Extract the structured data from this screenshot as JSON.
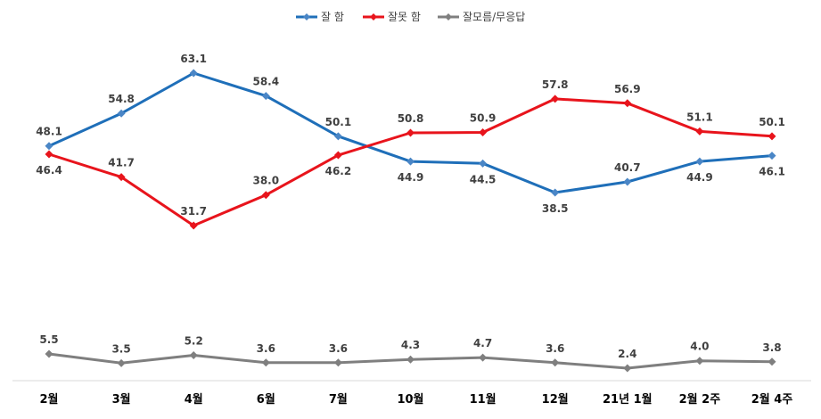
{
  "chart_data": {
    "type": "line",
    "title": "",
    "xlabel": "",
    "ylabel": "",
    "categories": [
      "2월",
      "3월",
      "4월",
      "6월",
      "7월",
      "10월",
      "11월",
      "12월",
      "21년 1월",
      "2월 2주",
      "2월 4주"
    ],
    "series": [
      {
        "name": "잘 함",
        "color": "#1f6fb9",
        "marker_color": "#4a86c6",
        "values": [
          48.1,
          54.8,
          63.1,
          58.4,
          50.1,
          44.9,
          44.5,
          38.5,
          40.7,
          44.9,
          46.1
        ]
      },
      {
        "name": "잘못 함",
        "color": "#e8141c",
        "marker_color": "#e8141c",
        "values": [
          46.4,
          41.7,
          31.7,
          38.0,
          46.2,
          50.8,
          50.9,
          57.8,
          56.9,
          51.1,
          50.1
        ]
      },
      {
        "name": "잘모름/무응답",
        "color": "#7f7f7f",
        "marker_color": "#7f7f7f",
        "values": [
          5.5,
          3.5,
          5.2,
          3.6,
          3.6,
          4.3,
          4.7,
          3.6,
          2.4,
          4.0,
          3.8
        ]
      }
    ],
    "ylim": [
      0,
      70
    ],
    "grid": false,
    "legend_position": "top-center"
  }
}
